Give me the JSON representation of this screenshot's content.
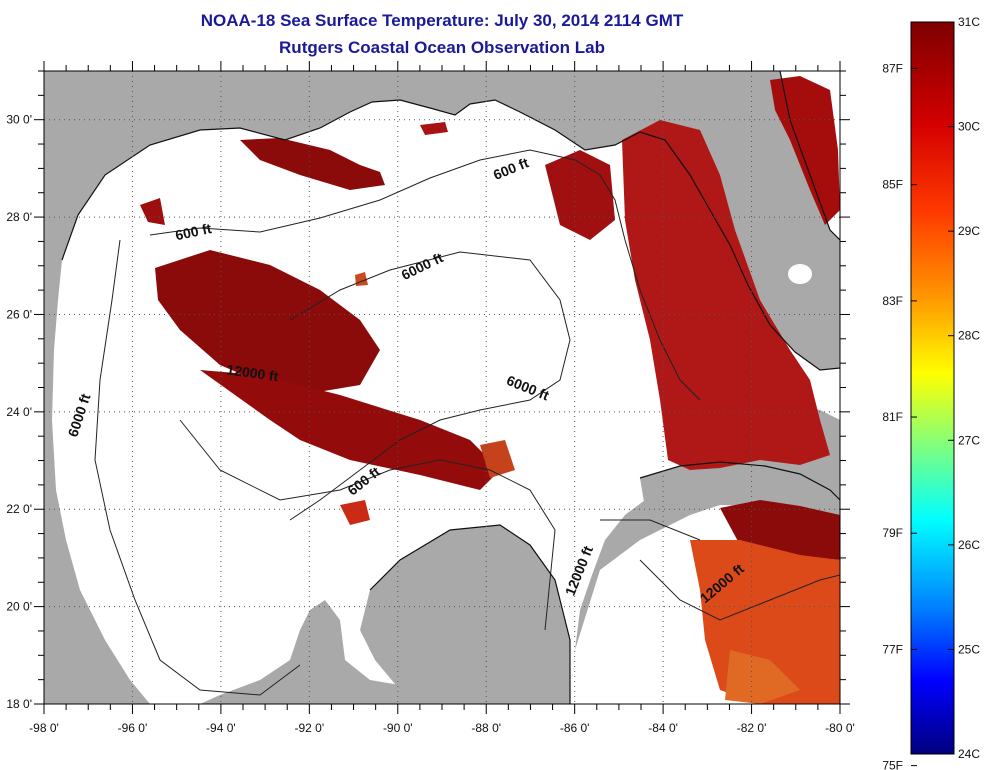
{
  "header": {
    "title": "NOAA-18 Sea Surface Temperature:  July 30, 2014 2114 GMT",
    "subtitle": "Rutgers Coastal Ocean Observation Lab"
  },
  "map": {
    "lon_range": [
      -98,
      -80
    ],
    "lat_range": [
      18,
      31
    ],
    "lon_ticks": [
      {
        "value": -98,
        "label": "-98 0'"
      },
      {
        "value": -96,
        "label": "-96 0'"
      },
      {
        "value": -94,
        "label": "-94 0'"
      },
      {
        "value": -92,
        "label": "-92 0'"
      },
      {
        "value": -90,
        "label": "-90 0'"
      },
      {
        "value": -88,
        "label": "-88 0'"
      },
      {
        "value": -86,
        "label": "-86 0'"
      },
      {
        "value": -84,
        "label": "-84 0'"
      },
      {
        "value": -82,
        "label": "-82 0'"
      },
      {
        "value": -80,
        "label": "-80 0'"
      }
    ],
    "lat_ticks": [
      {
        "value": 30,
        "label": "30 0'"
      },
      {
        "value": 28,
        "label": "28 0'"
      },
      {
        "value": 26,
        "label": "26 0'"
      },
      {
        "value": 24,
        "label": "24 0'"
      },
      {
        "value": 22,
        "label": "22 0'"
      },
      {
        "value": 20,
        "label": "20 0'"
      },
      {
        "value": 18,
        "label": "18 0'"
      }
    ],
    "grid": true,
    "colors": {
      "land": "#a9a9a9",
      "water": "#ffffff",
      "warm_sst": "#8b0a0a"
    },
    "contour_labels": [
      {
        "text": "600 ft",
        "lon": -87.4,
        "lat": 28.9,
        "rotate": -22
      },
      {
        "text": "600 ft",
        "lon": -94.6,
        "lat": 27.6,
        "rotate": -12
      },
      {
        "text": "6000 ft",
        "lon": -89.4,
        "lat": 26.9,
        "rotate": -26
      },
      {
        "text": "12000 ft",
        "lon": -93.3,
        "lat": 24.7,
        "rotate": 8
      },
      {
        "text": "6000 ft",
        "lon": -97.1,
        "lat": 23.9,
        "rotate": -72
      },
      {
        "text": "6000 ft",
        "lon": -87.1,
        "lat": 24.4,
        "rotate": 22
      },
      {
        "text": "600 ft",
        "lon": -90.7,
        "lat": 22.5,
        "rotate": -38
      },
      {
        "text": "12000 ft",
        "lon": -85.8,
        "lat": 20.7,
        "rotate": -68
      },
      {
        "text": "12000 ft",
        "lon": -82.6,
        "lat": 20.4,
        "rotate": -40
      }
    ]
  },
  "colorbar": {
    "celsius_ticks": [
      {
        "value": 31,
        "label": "31C"
      },
      {
        "value": 30,
        "label": "30C"
      },
      {
        "value": 29,
        "label": "29C"
      },
      {
        "value": 28,
        "label": "28C"
      },
      {
        "value": 27,
        "label": "27C"
      },
      {
        "value": 26,
        "label": "26C"
      },
      {
        "value": 25,
        "label": "25C"
      },
      {
        "value": 24,
        "label": "24C"
      }
    ],
    "fahrenheit_ticks": [
      {
        "value": 87,
        "label": "87F"
      },
      {
        "value": 85,
        "label": "85F"
      },
      {
        "value": 83,
        "label": "83F"
      },
      {
        "value": 81,
        "label": "81F"
      },
      {
        "value": 79,
        "label": "79F"
      },
      {
        "value": 77,
        "label": "77F"
      },
      {
        "value": 75,
        "label": "75F"
      }
    ],
    "range_c": [
      24,
      31
    ],
    "stops": [
      "#7f0000",
      "#ff0000",
      "#ffff00",
      "#00ffff",
      "#0000ff",
      "#00007f"
    ]
  }
}
